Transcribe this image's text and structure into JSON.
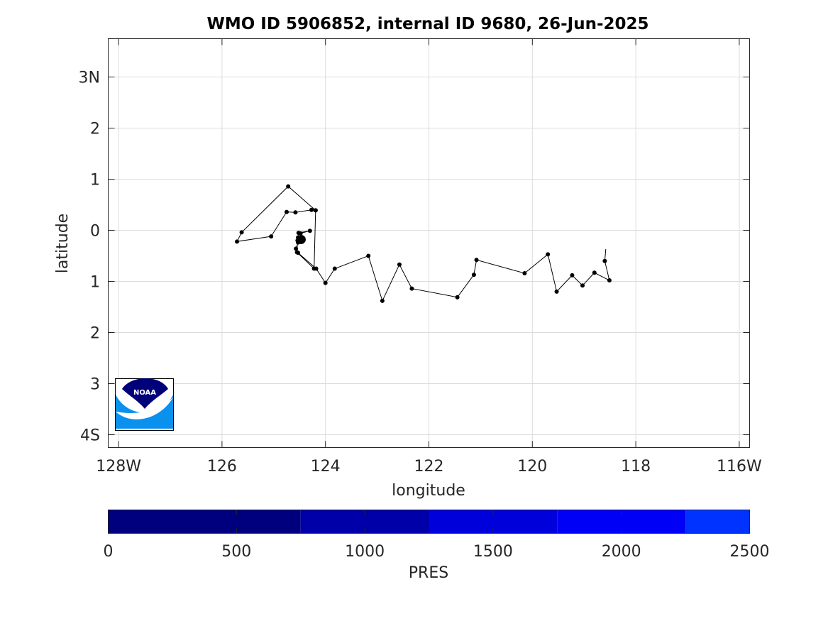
{
  "chart_data": {
    "type": "line",
    "title": "WMO ID 5906852, internal ID 9680, 26-Jun-2025",
    "xlabel": "longitude",
    "ylabel": "latitude",
    "xlim": [
      -128.2,
      -115.8
    ],
    "ylim": [
      -4.25,
      3.75
    ],
    "grid": true,
    "x_ticks": [
      -128,
      -126,
      -124,
      -122,
      -120,
      -118,
      -116
    ],
    "x_tick_labels": [
      "128W",
      "126",
      "124",
      "122",
      "120",
      "118",
      "116W"
    ],
    "y_ticks": [
      3,
      2,
      1,
      0,
      -1,
      -2,
      -3,
      -4
    ],
    "y_tick_labels": [
      "3N",
      "2",
      "1",
      "0",
      "1",
      "2",
      "3",
      "4S"
    ],
    "series": [
      {
        "x": [
          -118.58,
          -118.6,
          -118.51,
          -118.8,
          -119.03,
          -119.23,
          -119.53,
          -119.7,
          -120.15,
          -121.08,
          -121.13,
          -121.45,
          -122.33,
          -122.57,
          -122.9,
          -123.17,
          -123.82,
          -124.0,
          -124.18,
          -124.53,
          -124.57,
          -124.53,
          -124.53,
          -124.5,
          -124.47,
          -124.51,
          -124.48,
          -124.3,
          -124.52,
          -124.54,
          -124.55,
          -124.22,
          -124.19,
          -124.27,
          -124.58,
          -124.75,
          -125.05,
          -125.71,
          -125.62,
          -124.72,
          -124.19
        ],
        "y": [
          -0.37,
          -0.6,
          -0.98,
          -0.83,
          -1.08,
          -0.88,
          -1.2,
          -0.47,
          -0.84,
          -0.58,
          -0.87,
          -1.31,
          -1.14,
          -0.67,
          -1.38,
          -0.5,
          -0.75,
          -1.03,
          -0.75,
          -0.44,
          -0.36,
          -0.24,
          -0.14,
          -0.2,
          -0.18,
          -0.16,
          -0.06,
          -0.01,
          -0.05,
          -0.2,
          -0.43,
          -0.75,
          0.39,
          0.4,
          0.35,
          0.36,
          -0.12,
          -0.22,
          -0.04,
          0.86,
          0.39
        ]
      }
    ],
    "current_position": {
      "x": -124.47,
      "y": -0.18
    },
    "colorbar": {
      "label": "PRES",
      "ticks": [
        0,
        500,
        1000,
        1500,
        2000,
        2500
      ],
      "tick_labels": [
        "0",
        "500",
        "1000",
        "1500",
        "2000",
        "2500"
      ],
      "range": [
        0,
        2500
      ],
      "segments": [
        {
          "from": 0,
          "to": 750,
          "color": "#00007f"
        },
        {
          "from": 750,
          "to": 1250,
          "color": "#0000a8"
        },
        {
          "from": 1250,
          "to": 1750,
          "color": "#0000db"
        },
        {
          "from": 1750,
          "to": 2250,
          "color": "#0000f7"
        },
        {
          "from": 2250,
          "to": 2500,
          "color": "#0033ff"
        }
      ]
    },
    "logo": {
      "text": "NOAA",
      "dark_color": "#00007a",
      "light_color": "#0a91ee"
    }
  }
}
